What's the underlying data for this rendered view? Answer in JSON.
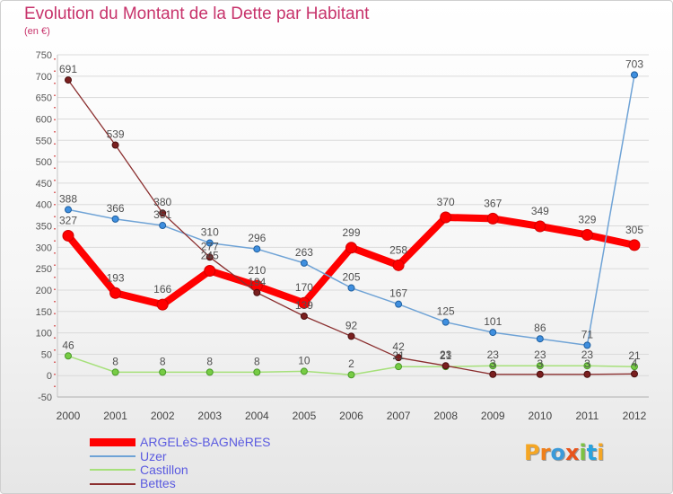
{
  "chart_data": {
    "type": "line",
    "title": "Evolution du Montant de la Dette par Habitant",
    "subtitle": "(en €)",
    "x": [
      "2000",
      "2001",
      "2002",
      "2003",
      "2004",
      "2005",
      "2006",
      "2007",
      "2008",
      "2009",
      "2010",
      "2011",
      "2012"
    ],
    "ylim": [
      -50,
      750
    ],
    "yticks": [
      -50,
      0,
      50,
      100,
      150,
      200,
      250,
      300,
      350,
      400,
      450,
      500,
      550,
      600,
      650,
      700,
      750
    ],
    "grid": true,
    "legend": "bottom-left",
    "data_labels": true,
    "series": [
      {
        "name": "ARGELèS-BAGNèRES",
        "color": "#ff0000",
        "marker_color": "#ff0000",
        "marker_stroke": "#d00000",
        "values": [
          327,
          193,
          166,
          245,
          210,
          170,
          299,
          258,
          370,
          367,
          349,
          329,
          305
        ]
      },
      {
        "name": "Uzer",
        "color": "#6fa3d6",
        "marker_color": "#3f8fdf",
        "marker_stroke": "#1f5f9f",
        "values": [
          388,
          366,
          351,
          310,
          296,
          263,
          205,
          167,
          125,
          101,
          86,
          71,
          703
        ]
      },
      {
        "name": "Castillon",
        "color": "#a6e07a",
        "marker_color": "#77cc44",
        "marker_stroke": "#4a9a2a",
        "values": [
          46,
          8,
          8,
          8,
          8,
          10,
          2,
          21,
          21,
          23,
          23,
          23,
          21
        ]
      },
      {
        "name": "Bettes",
        "color": "#8b2f2f",
        "marker_color": "#7a1f1f",
        "marker_stroke": "#4a0f0f",
        "values": [
          691,
          539,
          380,
          277,
          194,
          139,
          92,
          42,
          23,
          3,
          3,
          3,
          4
        ]
      }
    ]
  },
  "logo": {
    "text": "Proxiti",
    "letter_colors": [
      "#f5a623",
      "#ef7f1a",
      "#3b9ad9",
      "#e8541c",
      "#7cc242",
      "#2aa3dd",
      "#f5a623"
    ]
  }
}
